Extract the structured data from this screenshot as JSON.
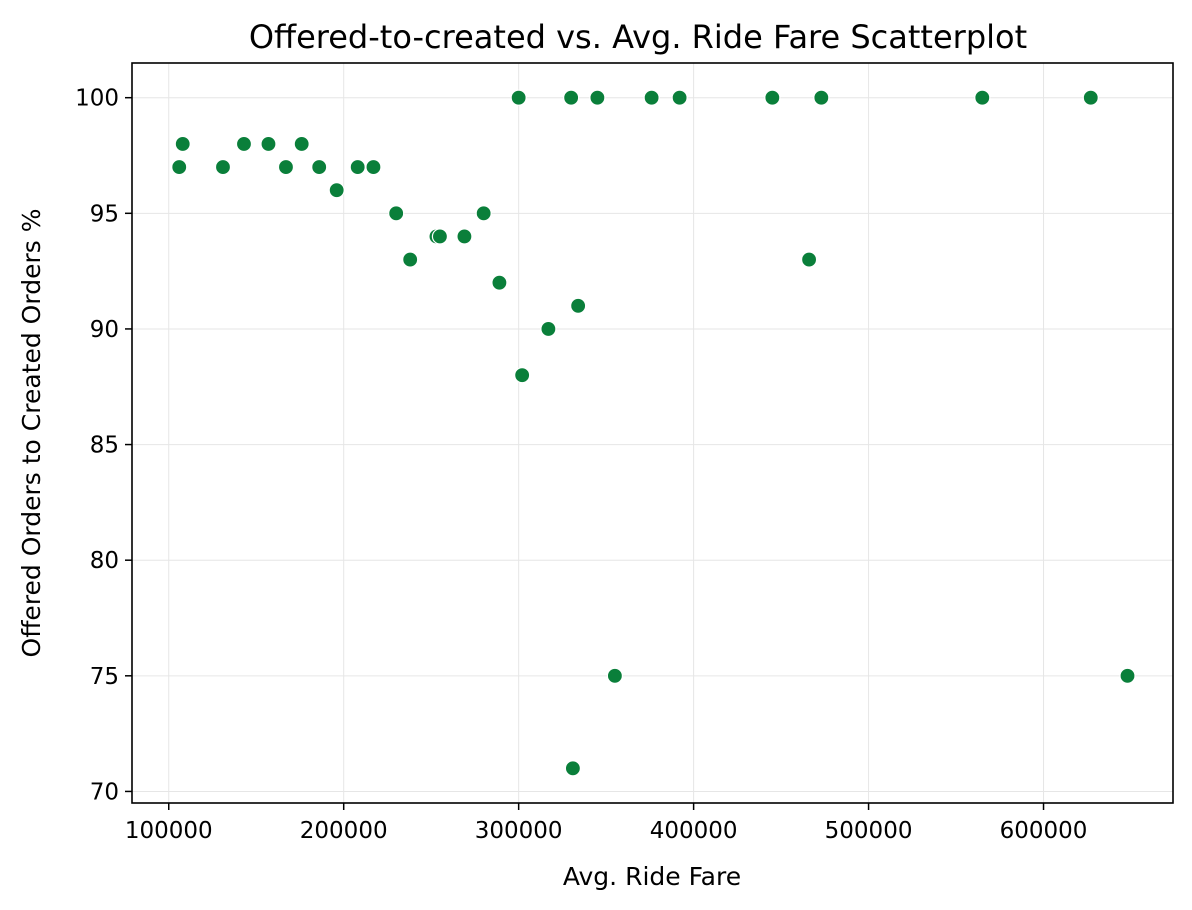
{
  "chart_data": {
    "type": "scatter",
    "title": "Offered-to-created vs. Avg. Ride Fare Scatterplot",
    "xlabel": "Avg. Ride Fare",
    "ylabel": "Offered Orders to Created Orders %",
    "xlim": [
      79000,
      674000
    ],
    "ylim": [
      69.5,
      101.5
    ],
    "xticks": [
      100000,
      200000,
      300000,
      400000,
      500000,
      600000
    ],
    "xtick_labels": [
      "100000",
      "200000",
      "300000",
      "400000",
      "500000",
      "600000"
    ],
    "yticks": [
      70,
      75,
      80,
      85,
      90,
      95,
      100
    ],
    "ytick_labels": [
      "70",
      "75",
      "80",
      "85",
      "90",
      "95",
      "100"
    ],
    "grid": true,
    "marker_color": "#0a7f3a",
    "points": [
      {
        "x": 106000,
        "y": 97
      },
      {
        "x": 108000,
        "y": 98
      },
      {
        "x": 131000,
        "y": 97
      },
      {
        "x": 143000,
        "y": 98
      },
      {
        "x": 157000,
        "y": 98
      },
      {
        "x": 167000,
        "y": 97
      },
      {
        "x": 176000,
        "y": 98
      },
      {
        "x": 186000,
        "y": 97
      },
      {
        "x": 196000,
        "y": 96
      },
      {
        "x": 208000,
        "y": 97
      },
      {
        "x": 217000,
        "y": 97
      },
      {
        "x": 230000,
        "y": 95
      },
      {
        "x": 238000,
        "y": 93
      },
      {
        "x": 253000,
        "y": 94
      },
      {
        "x": 255000,
        "y": 94
      },
      {
        "x": 269000,
        "y": 94
      },
      {
        "x": 280000,
        "y": 95
      },
      {
        "x": 289000,
        "y": 92
      },
      {
        "x": 300000,
        "y": 100
      },
      {
        "x": 302000,
        "y": 88
      },
      {
        "x": 317000,
        "y": 90
      },
      {
        "x": 330000,
        "y": 100
      },
      {
        "x": 331000,
        "y": 71
      },
      {
        "x": 334000,
        "y": 91
      },
      {
        "x": 345000,
        "y": 100
      },
      {
        "x": 355000,
        "y": 75
      },
      {
        "x": 376000,
        "y": 100
      },
      {
        "x": 392000,
        "y": 100
      },
      {
        "x": 445000,
        "y": 100
      },
      {
        "x": 466000,
        "y": 93
      },
      {
        "x": 473000,
        "y": 100
      },
      {
        "x": 565000,
        "y": 100
      },
      {
        "x": 627000,
        "y": 100
      },
      {
        "x": 648000,
        "y": 75
      }
    ]
  }
}
